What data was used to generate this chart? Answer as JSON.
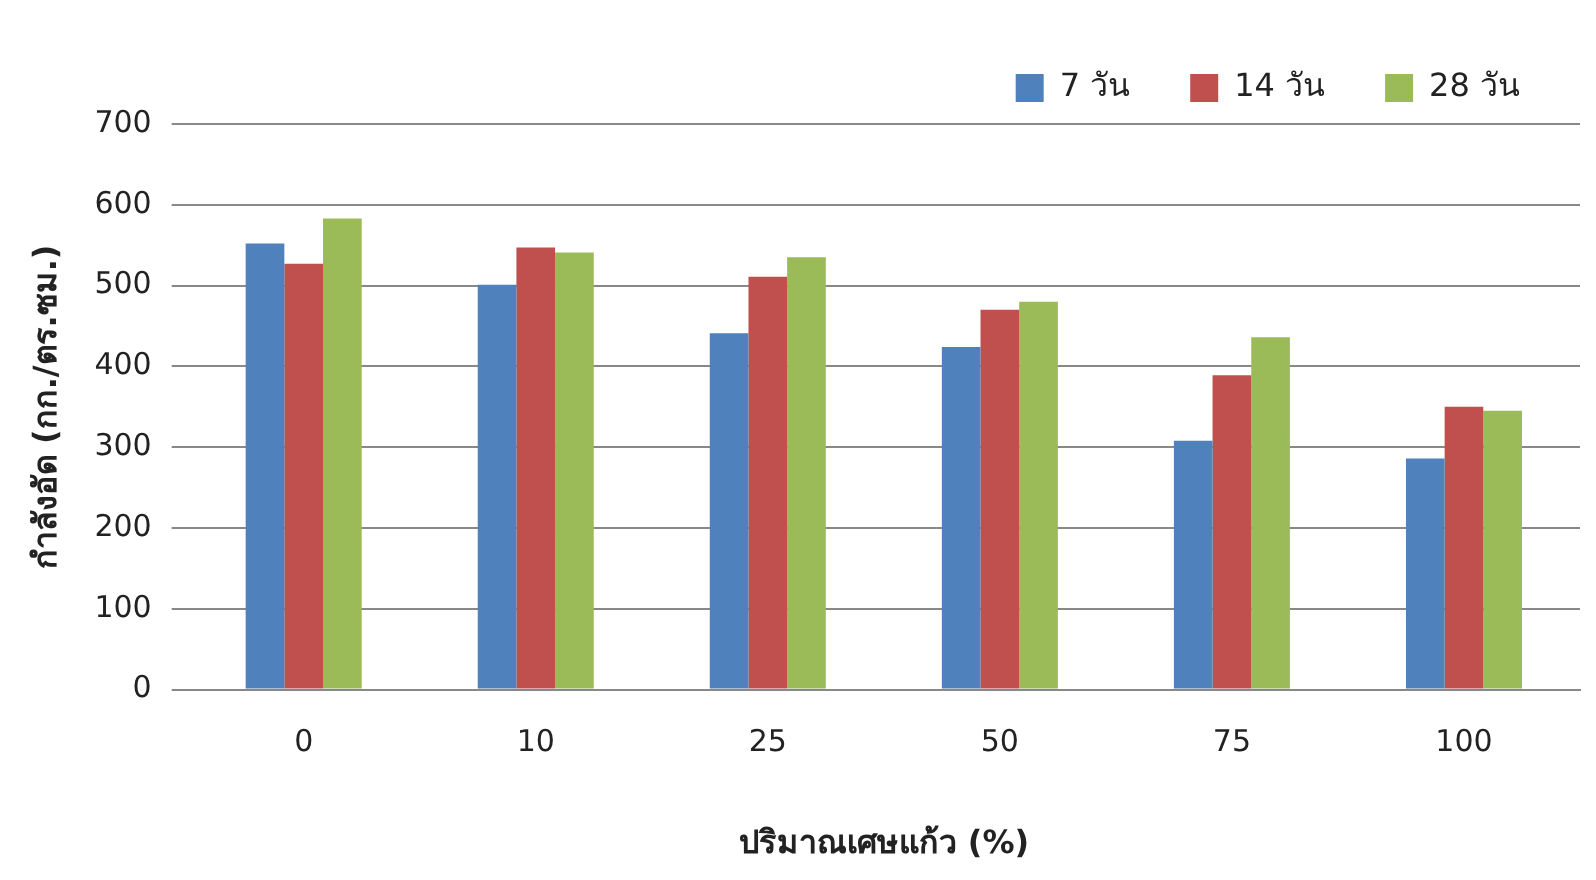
{
  "chart_data": {
    "type": "bar",
    "xlabel": "ปริมาณเศษแก้ว (%)",
    "ylabel": "กำลังอัด (กก./ตร.ซม.)",
    "categories": [
      "0",
      "10",
      "25",
      "50",
      "75",
      "100"
    ],
    "series": [
      {
        "name": "7 วัน",
        "color": "#4f81bd",
        "values": [
          552,
          501,
          441,
          424,
          308,
          286
        ]
      },
      {
        "name": "14 วัน",
        "color": "#c0504d",
        "values": [
          527,
          547,
          511,
          470,
          389,
          350
        ]
      },
      {
        "name": "28 วัน",
        "color": "#9bbb59",
        "values": [
          583,
          541,
          535,
          480,
          436,
          345
        ]
      }
    ],
    "ylim": [
      0,
      700
    ],
    "yticks": [
      0,
      100,
      200,
      300,
      400,
      500,
      600,
      700
    ],
    "grid": "y",
    "legend": "top right"
  }
}
